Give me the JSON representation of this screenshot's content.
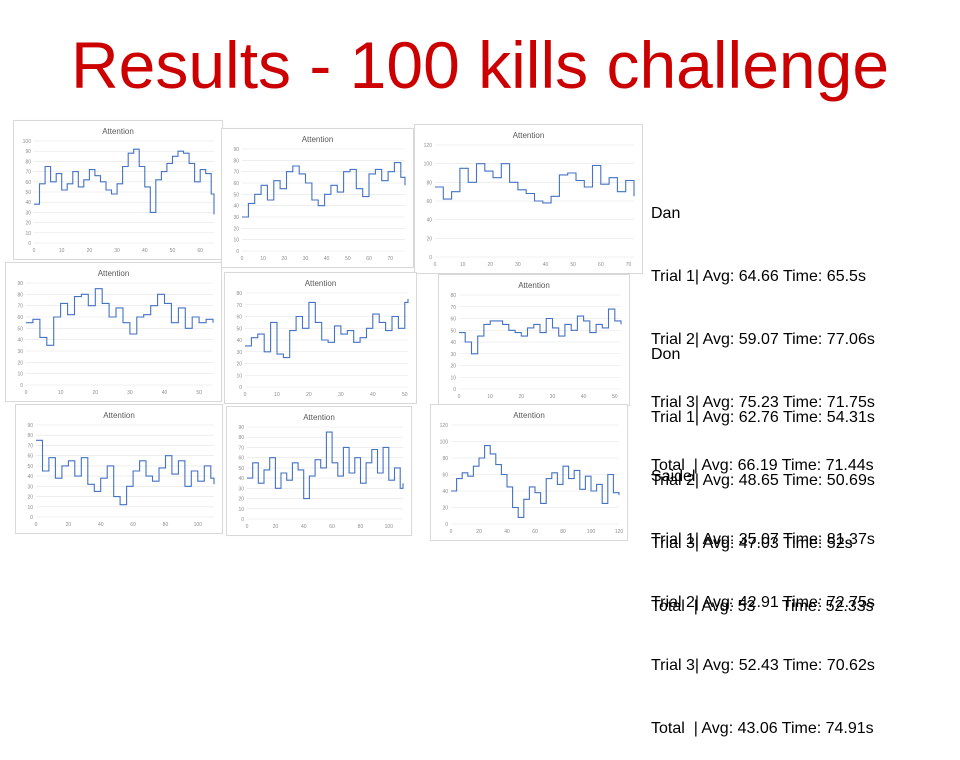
{
  "page": {
    "title": "Results - 100 kills challenge"
  },
  "colors": {
    "title": "#cc0000",
    "series": "#4472c4",
    "grid": "#e4e4e4",
    "axis_text": "#8c8c8c"
  },
  "results": [
    {
      "name": "Dan",
      "lines": [
        "Trial 1| Avg: 64.66 Time: 65.5s",
        "Trial 2| Avg: 59.07 Time: 77.06s",
        "Trial 3| Avg: 75.23 Time: 71.75s",
        "Total  | Avg: 66.19 Time: 71.44s"
      ]
    },
    {
      "name": "Don",
      "lines": [
        "Trial 1| Avg: 62.76 Time: 54.31s",
        "Trial 2| Avg: 48.65 Time: 50.69s",
        "Trial 3| Avg: 47.03 Time: 52s",
        "Total  | Avg: 53      Time: 52.33s"
      ]
    },
    {
      "name": "Saidel",
      "lines": [
        "Trial 1| Avg: 35.07 Time: 81.37s",
        "Trial 2| Avg: 42.91 Time: 72.75s",
        "Trial 3| Avg: 52.43 Time: 70.62s",
        "Total  | Avg: 43.06 Time: 74.91s"
      ]
    }
  ],
  "chart_data": [
    {
      "type": "line",
      "title": "Attention",
      "ylim": [
        0,
        100
      ],
      "yticks": [
        0,
        10,
        20,
        30,
        40,
        50,
        60,
        70,
        80,
        90,
        100
      ],
      "xlim": [
        0,
        65
      ],
      "xticks": [
        0,
        10,
        20,
        30,
        40,
        50,
        60
      ],
      "grid": true,
      "series": [
        {
          "x": [
            0,
            2,
            4,
            6,
            8,
            10,
            12,
            14,
            16,
            18,
            20,
            22,
            24,
            26,
            28,
            30,
            32,
            34,
            36,
            38,
            40,
            42,
            44,
            46,
            48,
            50,
            52,
            54,
            56,
            58,
            60,
            62,
            64,
            65
          ],
          "values": [
            38,
            58,
            75,
            60,
            68,
            52,
            58,
            70,
            55,
            62,
            72,
            66,
            60,
            52,
            48,
            58,
            75,
            88,
            92,
            75,
            55,
            30,
            62,
            70,
            78,
            85,
            90,
            88,
            78,
            60,
            72,
            68,
            48,
            28
          ]
        }
      ]
    },
    {
      "type": "line",
      "title": "Attention",
      "ylim": [
        0,
        90
      ],
      "yticks": [
        0,
        10,
        20,
        30,
        40,
        50,
        60,
        70,
        80,
        90
      ],
      "xlim": [
        0,
        77
      ],
      "xticks": [
        0,
        10,
        20,
        30,
        40,
        50,
        60,
        70
      ],
      "grid": true,
      "series": [
        {
          "x": [
            0,
            3,
            6,
            9,
            12,
            15,
            18,
            21,
            24,
            27,
            30,
            33,
            36,
            39,
            42,
            45,
            48,
            51,
            54,
            57,
            60,
            63,
            66,
            69,
            72,
            75,
            77
          ],
          "values": [
            30,
            42,
            50,
            58,
            45,
            62,
            55,
            70,
            75,
            68,
            60,
            45,
            40,
            50,
            58,
            52,
            70,
            72,
            55,
            48,
            68,
            72,
            62,
            70,
            78,
            65,
            58
          ]
        }
      ]
    },
    {
      "type": "line",
      "title": "Attention",
      "ylim": [
        0,
        120
      ],
      "yticks": [
        0,
        20,
        40,
        60,
        80,
        100,
        120
      ],
      "xlim": [
        0,
        72
      ],
      "xticks": [
        0,
        10,
        20,
        30,
        40,
        50,
        60,
        70
      ],
      "grid": true,
      "series": [
        {
          "x": [
            0,
            3,
            6,
            9,
            12,
            15,
            18,
            21,
            24,
            27,
            30,
            33,
            36,
            39,
            42,
            45,
            48,
            51,
            54,
            57,
            60,
            63,
            66,
            69,
            72
          ],
          "values": [
            75,
            62,
            70,
            95,
            80,
            100,
            92,
            85,
            100,
            80,
            72,
            68,
            60,
            58,
            65,
            88,
            90,
            82,
            75,
            98,
            78,
            85,
            70,
            82,
            65
          ]
        }
      ]
    },
    {
      "type": "line",
      "title": "Attention",
      "ylim": [
        0,
        90
      ],
      "yticks": [
        0,
        10,
        20,
        30,
        40,
        50,
        60,
        70,
        80,
        90
      ],
      "xlim": [
        0,
        54
      ],
      "xticks": [
        0,
        10,
        20,
        30,
        40,
        50
      ],
      "grid": true,
      "series": [
        {
          "x": [
            0,
            2,
            4,
            6,
            8,
            10,
            12,
            14,
            16,
            18,
            20,
            22,
            24,
            26,
            28,
            30,
            32,
            34,
            36,
            38,
            40,
            42,
            44,
            46,
            48,
            50,
            52,
            54
          ],
          "values": [
            55,
            58,
            42,
            35,
            60,
            72,
            62,
            78,
            80,
            70,
            85,
            72,
            60,
            68,
            55,
            45,
            60,
            62,
            70,
            80,
            72,
            55,
            68,
            50,
            60,
            55,
            58,
            55
          ]
        }
      ]
    },
    {
      "type": "line",
      "title": "Attention",
      "ylim": [
        0,
        80
      ],
      "yticks": [
        0,
        10,
        20,
        30,
        40,
        50,
        60,
        70,
        80
      ],
      "xlim": [
        0,
        51
      ],
      "xticks": [
        0,
        10,
        20,
        30,
        40,
        50
      ],
      "grid": true,
      "series": [
        {
          "x": [
            0,
            2,
            4,
            6,
            8,
            10,
            12,
            14,
            16,
            18,
            20,
            22,
            24,
            26,
            28,
            30,
            32,
            34,
            36,
            38,
            40,
            42,
            44,
            46,
            48,
            50,
            51
          ],
          "values": [
            35,
            42,
            45,
            30,
            55,
            28,
            25,
            48,
            60,
            50,
            72,
            55,
            40,
            38,
            52,
            45,
            48,
            38,
            42,
            50,
            62,
            55,
            48,
            60,
            50,
            72,
            75
          ]
        }
      ]
    },
    {
      "type": "line",
      "title": "Attention",
      "ylim": [
        0,
        80
      ],
      "yticks": [
        0,
        10,
        20,
        30,
        40,
        50,
        60,
        70,
        80
      ],
      "xlim": [
        0,
        52
      ],
      "xticks": [
        0,
        10,
        20,
        30,
        40,
        50
      ],
      "grid": true,
      "series": [
        {
          "x": [
            0,
            2,
            4,
            6,
            8,
            10,
            12,
            14,
            16,
            18,
            20,
            22,
            24,
            26,
            28,
            30,
            32,
            34,
            36,
            38,
            40,
            42,
            44,
            46,
            48,
            50,
            52
          ],
          "values": [
            48,
            40,
            30,
            45,
            55,
            58,
            58,
            55,
            50,
            48,
            45,
            52,
            55,
            48,
            60,
            52,
            45,
            55,
            50,
            62,
            58,
            48,
            55,
            52,
            68,
            58,
            55
          ]
        }
      ]
    },
    {
      "type": "line",
      "title": "Attention",
      "ylim": [
        0,
        90
      ],
      "yticks": [
        0,
        10,
        20,
        30,
        40,
        50,
        60,
        70,
        80,
        90
      ],
      "xlim": [
        0,
        110
      ],
      "xticks": [
        0,
        20,
        40,
        60,
        80,
        100
      ],
      "grid": true,
      "series": [
        {
          "x": [
            0,
            4,
            8,
            12,
            16,
            20,
            24,
            28,
            32,
            36,
            40,
            44,
            48,
            52,
            56,
            60,
            64,
            68,
            72,
            76,
            80,
            84,
            88,
            92,
            96,
            100,
            104,
            108,
            110
          ],
          "values": [
            75,
            45,
            58,
            38,
            50,
            55,
            40,
            58,
            32,
            25,
            38,
            50,
            20,
            12,
            30,
            45,
            55,
            40,
            35,
            48,
            60,
            42,
            55,
            30,
            45,
            35,
            50,
            38,
            32
          ]
        }
      ]
    },
    {
      "type": "line",
      "title": "Attention",
      "ylim": [
        0,
        90
      ],
      "yticks": [
        0,
        10,
        20,
        30,
        40,
        50,
        60,
        70,
        80,
        90
      ],
      "xlim": [
        0,
        110
      ],
      "xticks": [
        0,
        20,
        40,
        60,
        80,
        100
      ],
      "grid": true,
      "series": [
        {
          "x": [
            0,
            4,
            8,
            12,
            16,
            20,
            24,
            28,
            32,
            36,
            40,
            44,
            48,
            52,
            56,
            60,
            64,
            68,
            72,
            76,
            80,
            84,
            88,
            92,
            96,
            100,
            104,
            108,
            110
          ],
          "values": [
            40,
            55,
            35,
            48,
            60,
            30,
            45,
            38,
            55,
            48,
            20,
            42,
            58,
            50,
            85,
            55,
            42,
            70,
            45,
            60,
            35,
            55,
            68,
            45,
            70,
            38,
            50,
            30,
            35
          ]
        }
      ]
    },
    {
      "type": "line",
      "title": "Attention",
      "ylim": [
        0,
        120
      ],
      "yticks": [
        0,
        20,
        40,
        60,
        80,
        100,
        120
      ],
      "xlim": [
        0,
        120
      ],
      "xticks": [
        0,
        20,
        40,
        60,
        80,
        100,
        120
      ],
      "grid": true,
      "series": [
        {
          "x": [
            0,
            4,
            8,
            12,
            16,
            20,
            24,
            28,
            32,
            36,
            40,
            44,
            48,
            52,
            56,
            60,
            64,
            68,
            72,
            76,
            80,
            84,
            88,
            92,
            96,
            100,
            104,
            108,
            112,
            116,
            120
          ],
          "values": [
            40,
            55,
            62,
            58,
            70,
            80,
            95,
            85,
            72,
            60,
            45,
            20,
            8,
            30,
            45,
            38,
            25,
            55,
            62,
            48,
            70,
            55,
            65,
            42,
            58,
            40,
            48,
            25,
            60,
            38,
            35
          ]
        }
      ]
    }
  ]
}
